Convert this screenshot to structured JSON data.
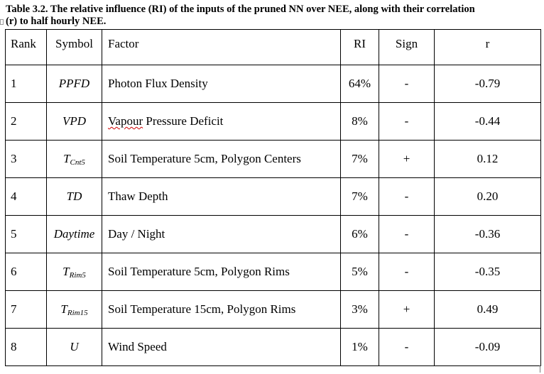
{
  "caption": {
    "line1": "Table 3.2. The relative influence (RI) of the inputs of the pruned NN over NEE, along with their correlation",
    "line2": "(r) to half hourly NEE."
  },
  "table": {
    "headers": [
      "Rank",
      "Symbol",
      "Factor",
      "RI",
      "Sign",
      "r"
    ],
    "rows": [
      {
        "rank": "1",
        "symbol": "PPFD",
        "symbol_sub": "",
        "factor": "Photon Flux Density",
        "ri": "64%",
        "sign": "-",
        "r": "-0.79"
      },
      {
        "rank": "2",
        "symbol": "VPD",
        "symbol_sub": "",
        "factor": "Vapour Pressure Deficit",
        "factor_flagged_word": "Vapour",
        "factor_rest": " Pressure Deficit",
        "ri": "8%",
        "sign": "-",
        "r": "-0.44"
      },
      {
        "rank": "3",
        "symbol": "T",
        "symbol_sub": "Cnt5",
        "factor": "Soil Temperature 5cm, Polygon Centers",
        "ri": "7%",
        "sign": "+",
        "r": "0.12"
      },
      {
        "rank": "4",
        "symbol": "TD",
        "symbol_sub": "",
        "factor": "Thaw Depth",
        "ri": "7%",
        "sign": "-",
        "r": "0.20"
      },
      {
        "rank": "5",
        "symbol": "Daytime",
        "symbol_sub": "",
        "factor": "Day / Night",
        "ri": "6%",
        "sign": "-",
        "r": "-0.36"
      },
      {
        "rank": "6",
        "symbol": "T",
        "symbol_sub": "Rim5",
        "factor": "Soil Temperature 5cm, Polygon Rims",
        "ri": "5%",
        "sign": "-",
        "r": "-0.35"
      },
      {
        "rank": "7",
        "symbol": "T",
        "symbol_sub": "Rim15",
        "factor": "Soil Temperature 15cm, Polygon Rims",
        "ri": "3%",
        "sign": "+",
        "r": "0.49"
      },
      {
        "rank": "8",
        "symbol": "U",
        "symbol_sub": "",
        "factor": "Wind Speed",
        "ri": "1%",
        "sign": "-",
        "r": "-0.09"
      }
    ]
  }
}
